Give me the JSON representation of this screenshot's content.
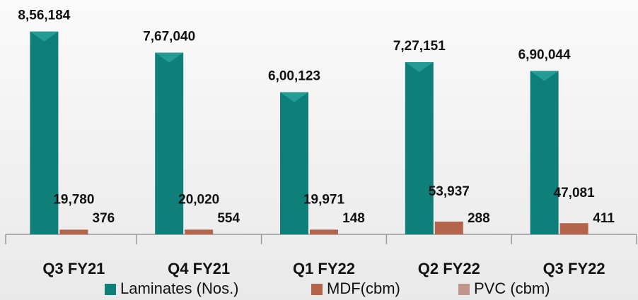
{
  "chart_data": {
    "type": "bar",
    "categories": [
      "Q3 FY21",
      "Q4 FY21",
      "Q1 FY22",
      "Q2 FY22",
      "Q3 FY22"
    ],
    "series": [
      {
        "name": "Laminates (Nos.)",
        "color": "#0f7f7a",
        "values": [
          856184,
          767040,
          600123,
          727151,
          690044
        ],
        "value_labels": [
          "8,56,184",
          "7,67,040",
          "6,00,123",
          "7,27,151",
          "6,90,044"
        ]
      },
      {
        "name": "MDF(cbm)",
        "color": "#b4644a",
        "values": [
          19780,
          20020,
          19971,
          53937,
          47081
        ],
        "value_labels": [
          "19,780",
          "20,020",
          "19,971",
          "53,937",
          "47,081"
        ]
      },
      {
        "name": "PVC (cbm)",
        "color": "#c0968b",
        "values": [
          376,
          554,
          148,
          288,
          411
        ],
        "value_labels": [
          "376",
          "554",
          "148",
          "288",
          "411"
        ]
      }
    ],
    "ylim": [
      0,
      900000
    ],
    "legend": "bottom"
  }
}
